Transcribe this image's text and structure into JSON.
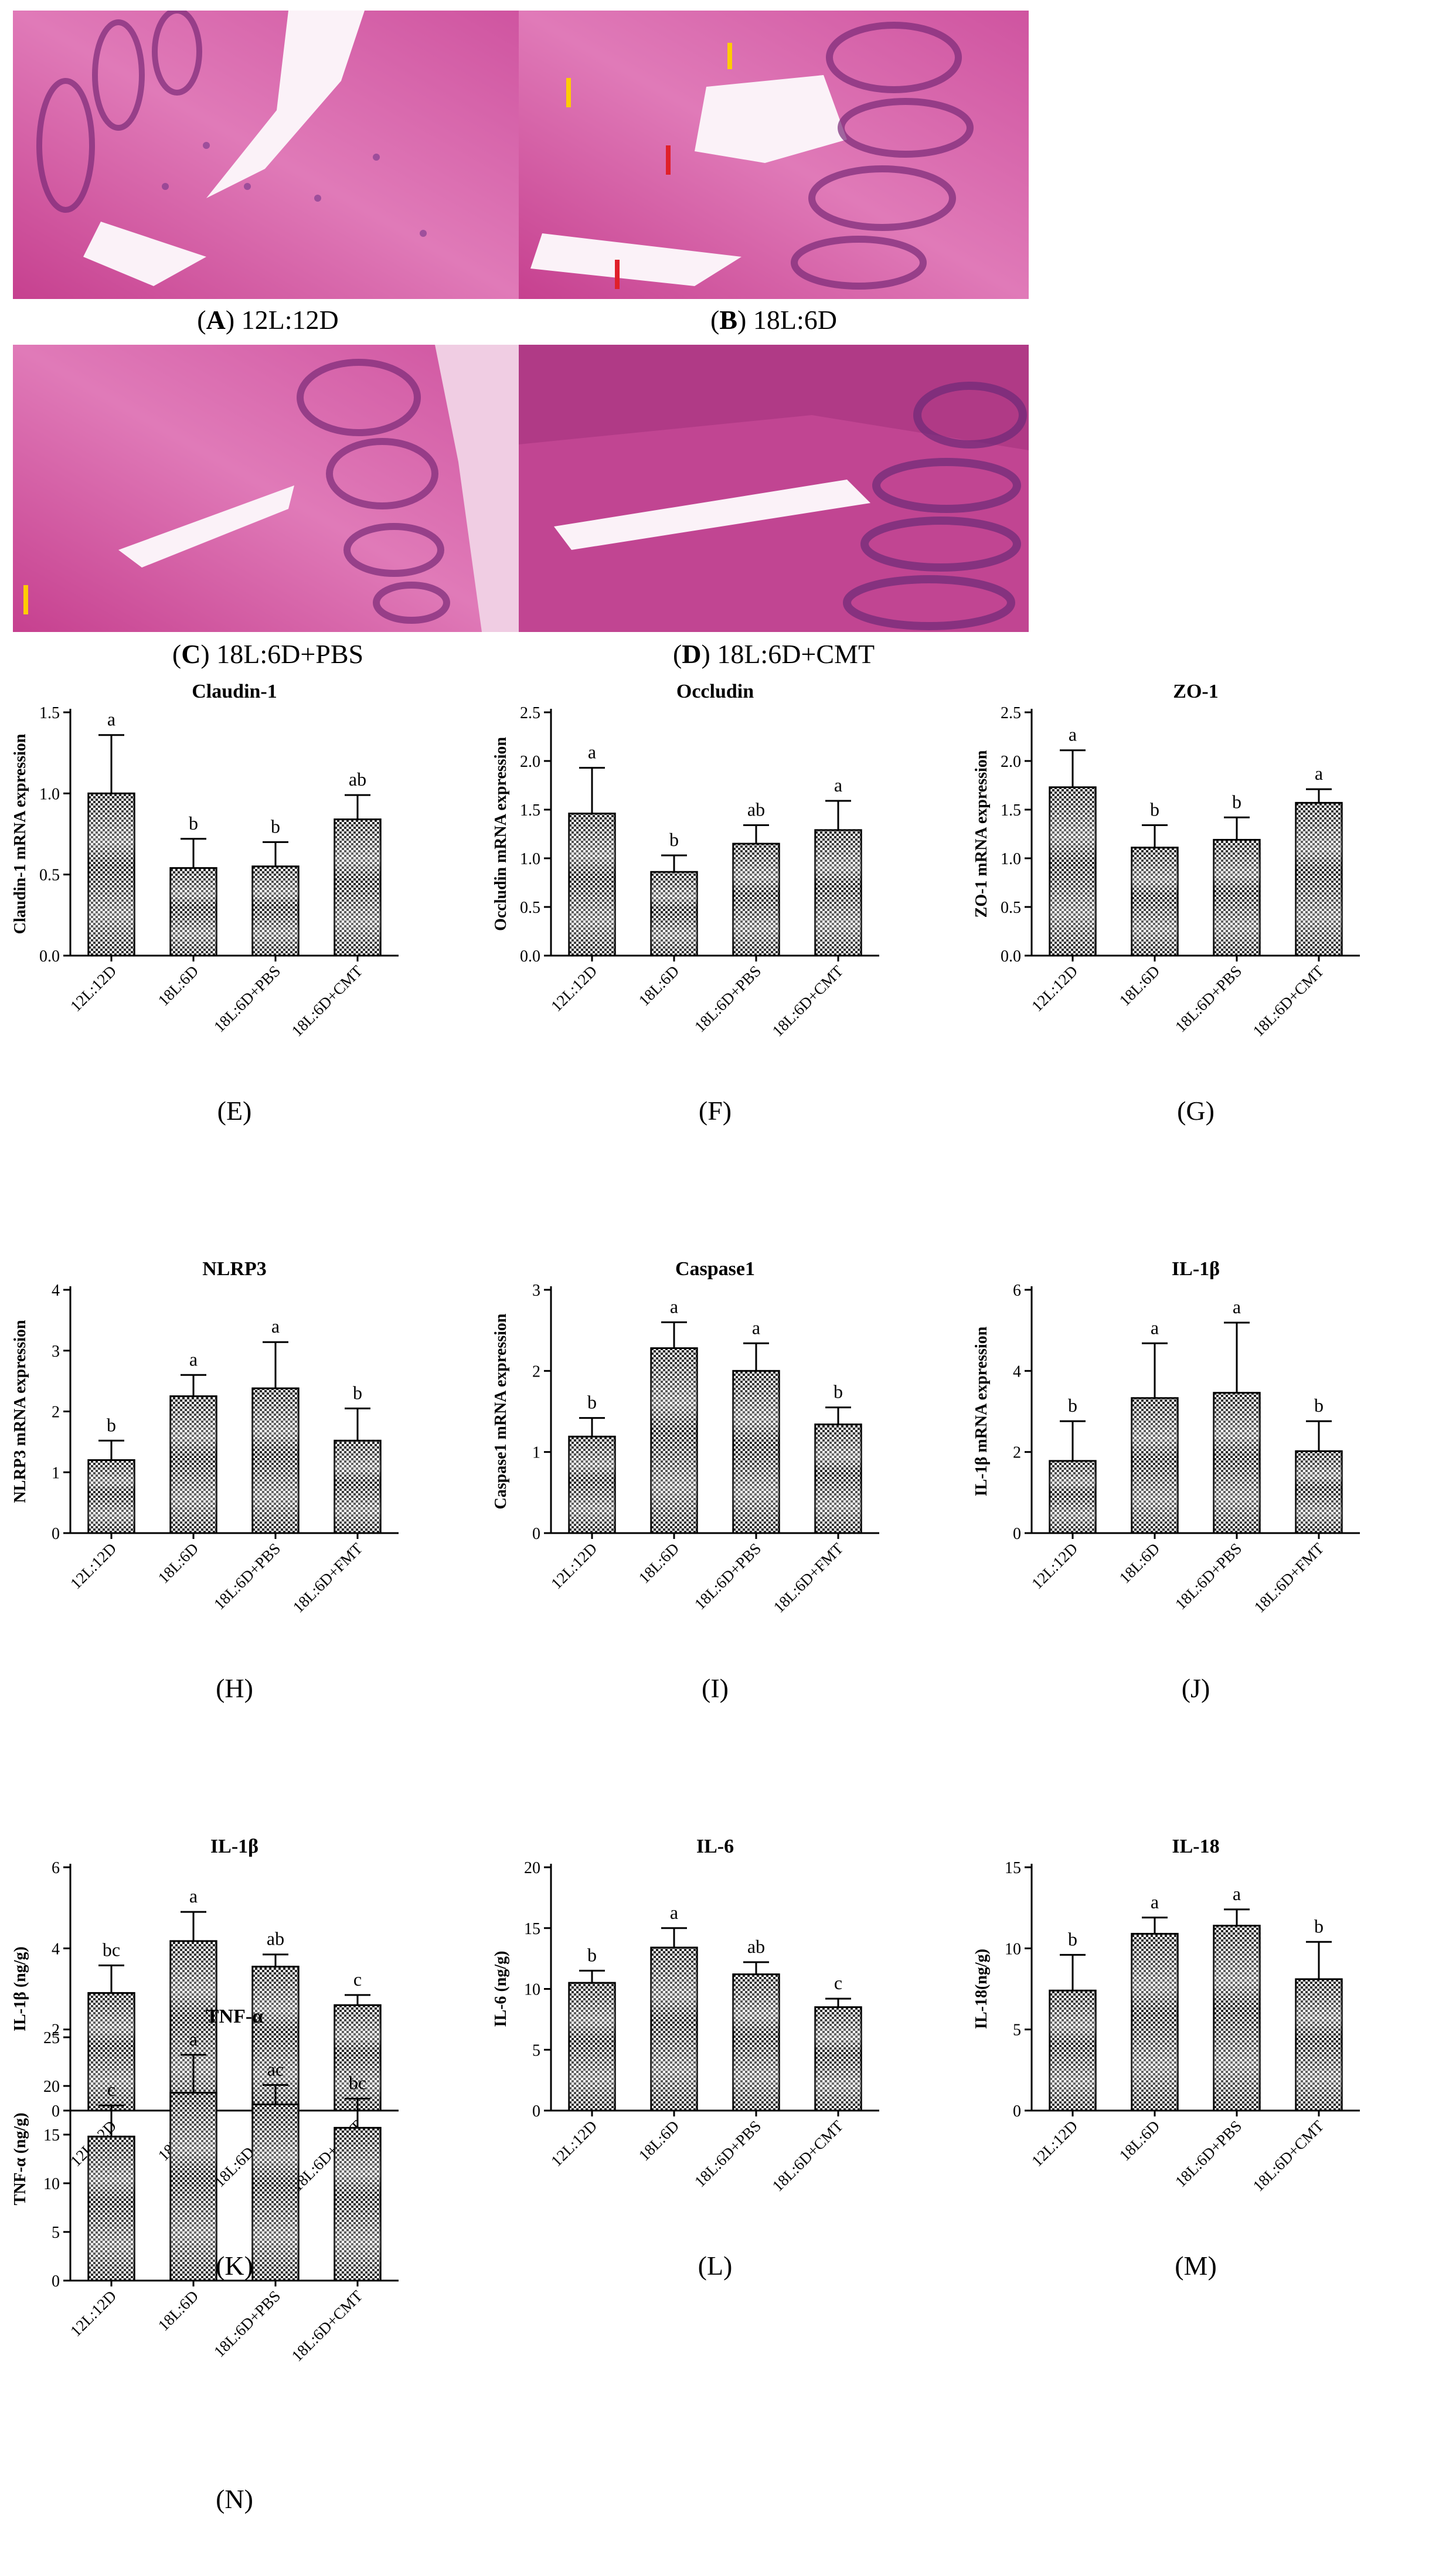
{
  "histology": [
    {
      "letter": "A",
      "label": "12L:12D"
    },
    {
      "letter": "B",
      "label": "18L:6D"
    },
    {
      "letter": "C",
      "label": "18L:6D+PBS"
    },
    {
      "letter": "D",
      "label": "18L:6D+CMT"
    }
  ],
  "charts": [
    {
      "panel": "(E)",
      "title": "Claudin-1",
      "ylabel": "Claudin-1 mRNA expression",
      "categories": [
        "12L:12D",
        "18L:6D",
        "18L:6D+PBS",
        "18L:6D+CMT"
      ],
      "values": [
        1.0,
        0.54,
        0.55,
        0.84
      ],
      "errors": [
        0.36,
        0.18,
        0.15,
        0.15
      ],
      "letters": [
        "a",
        "b",
        "b",
        "ab"
      ],
      "ylim": [
        0,
        1.5
      ],
      "ticks": [
        "0.0",
        "0.5",
        "1.0",
        "1.5"
      ]
    },
    {
      "panel": "(F)",
      "title": "Occludin",
      "ylabel": "Occludin mRNA expression",
      "categories": [
        "12L:12D",
        "18L:6D",
        "18L:6D+PBS",
        "18L:6D+CMT"
      ],
      "values": [
        1.46,
        0.86,
        1.15,
        1.29
      ],
      "errors": [
        0.47,
        0.17,
        0.19,
        0.3
      ],
      "letters": [
        "a",
        "b",
        "ab",
        "a"
      ],
      "ylim": [
        0,
        2.5
      ],
      "ticks": [
        "0.0",
        "0.5",
        "1.0",
        "1.5",
        "2.0",
        "2.5"
      ]
    },
    {
      "panel": "(G)",
      "title": "ZO-1",
      "ylabel": "ZO-1 mRNA expression",
      "categories": [
        "12L:12D",
        "18L:6D",
        "18L:6D+PBS",
        "18L:6D+CMT"
      ],
      "values": [
        1.73,
        1.11,
        1.19,
        1.57
      ],
      "errors": [
        0.38,
        0.23,
        0.23,
        0.14
      ],
      "letters": [
        "a",
        "b",
        "b",
        "a"
      ],
      "ylim": [
        0,
        2.5
      ],
      "ticks": [
        "0.0",
        "0.5",
        "1.0",
        "1.5",
        "2.0",
        "2.5"
      ]
    },
    {
      "panel": "(H)",
      "title": "NLRP3",
      "ylabel": "NLRP3 mRNA expression",
      "categories": [
        "12L:12D",
        "18L:6D",
        "18L:6D+PBS",
        "18L:6D+FMT"
      ],
      "values": [
        1.2,
        2.25,
        2.38,
        1.52
      ],
      "errors": [
        0.32,
        0.35,
        0.76,
        0.53
      ],
      "letters": [
        "b",
        "a",
        "a",
        "b"
      ],
      "ylim": [
        0,
        4
      ],
      "ticks": [
        "0",
        "1",
        "2",
        "3",
        "4"
      ]
    },
    {
      "panel": "(I)",
      "title": "Caspase1",
      "ylabel": "Caspase1 mRNA expression",
      "categories": [
        "12L:12D",
        "18L:6D",
        "18L:6D+PBS",
        "18L:6D+FMT"
      ],
      "values": [
        1.19,
        2.28,
        2.0,
        1.34
      ],
      "errors": [
        0.23,
        0.32,
        0.34,
        0.21
      ],
      "letters": [
        "b",
        "a",
        "a",
        "b"
      ],
      "ylim": [
        0,
        3
      ],
      "ticks": [
        "0",
        "1",
        "2",
        "3"
      ]
    },
    {
      "panel": "(J)",
      "title": "IL-1β",
      "ylabel": "IL-1β mRNA expression",
      "categories": [
        "12L:12D",
        "18L:6D",
        "18L:6D+PBS",
        "18L:6D+FMT"
      ],
      "values": [
        1.78,
        3.33,
        3.46,
        2.02
      ],
      "errors": [
        0.98,
        1.35,
        1.73,
        0.74
      ],
      "letters": [
        "b",
        "a",
        "a",
        "b"
      ],
      "ylim": [
        0,
        6
      ],
      "ticks": [
        "0",
        "2",
        "4",
        "6"
      ]
    },
    {
      "panel": "(K)",
      "title": "IL-1β",
      "ylabel": "IL-1β (ng/g)",
      "categories": [
        "12L:12D",
        "18L:6D",
        "18L:6D+PBS",
        "18L:6D+CMT"
      ],
      "values": [
        2.9,
        4.18,
        3.55,
        2.6
      ],
      "errors": [
        0.68,
        0.72,
        0.3,
        0.25
      ],
      "letters": [
        "bc",
        "a",
        "ab",
        "c"
      ],
      "ylim": [
        0,
        6
      ],
      "ticks": [
        "0",
        "2",
        "4",
        "6"
      ]
    },
    {
      "panel": "(L)",
      "title": "IL-6",
      "ylabel": "IL-6 (ng/g)",
      "categories": [
        "12L:12D",
        "18L:6D",
        "18L:6D+PBS",
        "18L:6D+CMT"
      ],
      "values": [
        10.5,
        13.4,
        11.2,
        8.5
      ],
      "errors": [
        1.0,
        1.6,
        1.0,
        0.7
      ],
      "letters": [
        "b",
        "a",
        "ab",
        "c"
      ],
      "ylim": [
        0,
        20
      ],
      "ticks": [
        "0",
        "5",
        "10",
        "15",
        "20"
      ]
    },
    {
      "panel": "(M)",
      "title": "IL-18",
      "ylabel": "IL-18(ng/g)",
      "categories": [
        "12L:12D",
        "18L:6D",
        "18L:6D+PBS",
        "18L:6D+CMT"
      ],
      "values": [
        7.4,
        10.9,
        11.4,
        8.1
      ],
      "errors": [
        2.2,
        1.0,
        1.0,
        2.3
      ],
      "letters": [
        "b",
        "a",
        "a",
        "b"
      ],
      "ylim": [
        0,
        15
      ],
      "ticks": [
        "0",
        "5",
        "10",
        "15"
      ]
    },
    {
      "panel": "(N)",
      "title": "TNF-α",
      "ylabel": "TNF-α (ng/g)",
      "categories": [
        "12L:12D",
        "18L:6D",
        "18L:6D+PBS",
        "18L:6D+CMT"
      ],
      "values": [
        14.8,
        19.3,
        18.1,
        15.7
      ],
      "errors": [
        3.2,
        3.9,
        2.0,
        3.0
      ],
      "letters": [
        "c",
        "a",
        "ac",
        "bc"
      ],
      "ylim": [
        0,
        25
      ],
      "ticks": [
        "0",
        "5",
        "10",
        "15",
        "20",
        "25"
      ]
    }
  ],
  "colors": {
    "tissue": "#e05aa8",
    "bar_fill": "pattern",
    "axis": "#000000"
  }
}
